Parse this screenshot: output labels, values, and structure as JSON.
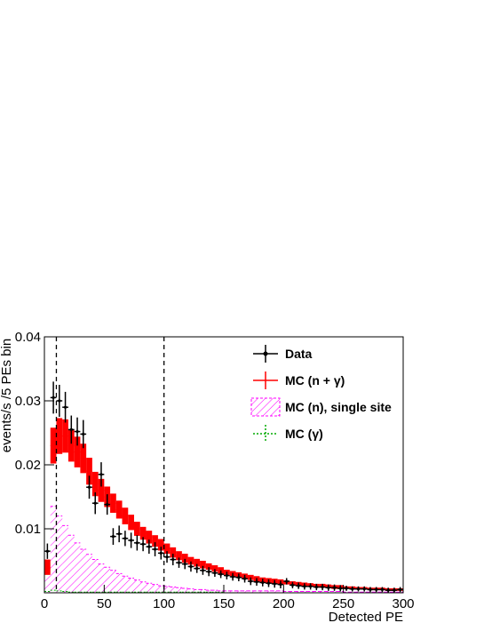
{
  "chart_data": {
    "type": "histogram",
    "x_label": "Detected PE",
    "y_label": "events/s /5 PEs bin",
    "bins": [
      0,
      5,
      10,
      15,
      20,
      25,
      30,
      35,
      40,
      45,
      50,
      55,
      60,
      65,
      70,
      75,
      80,
      85,
      90,
      95,
      100,
      105,
      110,
      115,
      120,
      125,
      130,
      135,
      140,
      145,
      150,
      155,
      160,
      165,
      170,
      175,
      180,
      185,
      190,
      195,
      200,
      205,
      210,
      215,
      220,
      225,
      230,
      235,
      240,
      245,
      250,
      255,
      260,
      265,
      270,
      275,
      280,
      285,
      290,
      295,
      300
    ],
    "xlim": [
      0,
      300
    ],
    "xticks": [
      0,
      50,
      100,
      150,
      200,
      250,
      300
    ],
    "ylim": [
      0,
      0.04
    ],
    "yticks": [
      0.01,
      0.02,
      0.03,
      0.04
    ],
    "vlines": [
      10,
      100
    ],
    "legend": "top-right",
    "series": [
      {
        "name": "Data",
        "color": "#000000",
        "style": "points",
        "values": [
          0.0065,
          0.0305,
          0.03,
          0.029,
          0.0255,
          0.0252,
          0.0248,
          0.0165,
          0.014,
          0.0185,
          0.0138,
          0.0088,
          0.0092,
          0.0085,
          0.0082,
          0.0078,
          0.0076,
          0.0072,
          0.0068,
          0.0062,
          0.0056,
          0.0052,
          0.0047,
          0.0045,
          0.0041,
          0.0038,
          0.0035,
          0.0033,
          0.0031,
          0.0029,
          0.0027,
          0.0025,
          0.0024,
          0.0022,
          0.0018,
          0.0017,
          0.0016,
          0.0015,
          0.0014,
          0.0013,
          0.0018,
          0.0012,
          0.0011,
          0.001,
          0.001,
          0.0009,
          0.0009,
          0.0008,
          0.0008,
          0.0007,
          0.0007,
          0.0006,
          0.0006,
          0.0006,
          0.0005,
          0.0005,
          0.0005,
          0.0004,
          0.0004,
          0.0005
        ],
        "errors": [
          0.0012,
          0.0025,
          0.0025,
          0.0024,
          0.0022,
          0.0022,
          0.0022,
          0.0018,
          0.0017,
          0.0019,
          0.0016,
          0.0013,
          0.0013,
          0.0012,
          0.0012,
          0.0012,
          0.0011,
          0.0011,
          0.0011,
          0.001,
          0.0009,
          0.0009,
          0.0008,
          0.0008,
          0.0008,
          0.0007,
          0.0007,
          0.0007,
          0.0006,
          0.0006,
          0.0006,
          0.0006,
          0.0006,
          0.0006,
          0.0006,
          0.0006,
          0.0006,
          0.0006,
          0.0006,
          0.0006,
          0.0005,
          0.0005,
          0.0005,
          0.0005,
          0.0005,
          0.0005,
          0.0005,
          0.0005,
          0.0005,
          0.0005,
          0.0004,
          0.0004,
          0.0004,
          0.0004,
          0.0004,
          0.0004,
          0.0004,
          0.0004,
          0.0004,
          0.0004
        ]
      },
      {
        "name": "MC (n + γ)",
        "color": "#ff0000",
        "style": "band",
        "values": [
          0.004,
          0.023,
          0.0245,
          0.0245,
          0.023,
          0.022,
          0.021,
          0.019,
          0.017,
          0.016,
          0.015,
          0.014,
          0.013,
          0.012,
          0.011,
          0.01,
          0.0093,
          0.0087,
          0.0081,
          0.0075,
          0.0069,
          0.0063,
          0.0058,
          0.0054,
          0.005,
          0.0047,
          0.0044,
          0.0041,
          0.0038,
          0.0035,
          0.0032,
          0.003,
          0.0028,
          0.0026,
          0.0024,
          0.0022,
          0.002,
          0.0019,
          0.0018,
          0.0017,
          0.0016,
          0.0015,
          0.0014,
          0.0013,
          0.0012,
          0.0011,
          0.0011,
          0.001,
          0.0009,
          0.0009,
          0.0008,
          0.0008,
          0.0007,
          0.0007,
          0.0006,
          0.0006,
          0.0006,
          0.0005,
          0.0005,
          0.0005
        ],
        "errors": [
          0.0012,
          0.0028,
          0.0028,
          0.0026,
          0.0025,
          0.0024,
          0.0023,
          0.0021,
          0.0019,
          0.0018,
          0.0016,
          0.0015,
          0.0014,
          0.0013,
          0.0012,
          0.0011,
          0.001,
          0.001,
          0.0009,
          0.0009,
          0.0008,
          0.0008,
          0.0007,
          0.0007,
          0.0006,
          0.0006,
          0.0006,
          0.0005,
          0.0005,
          0.0005,
          0.0004,
          0.0004,
          0.0004,
          0.0004,
          0.0004,
          0.0004,
          0.0004,
          0.0004,
          0.0004,
          0.0004,
          0.0003,
          0.0003,
          0.0003,
          0.0003,
          0.0003,
          0.0003,
          0.0003,
          0.0003,
          0.0003,
          0.0003,
          0.0002,
          0.0002,
          0.0002,
          0.0002,
          0.0002,
          0.0002,
          0.0002,
          0.0002,
          0.0002,
          0.0002
        ]
      },
      {
        "name": "MC (n), single site",
        "color": "#ff00ff",
        "style": "hatched",
        "values": [
          0.005,
          0.0135,
          0.012,
          0.0105,
          0.009,
          0.0078,
          0.0068,
          0.006,
          0.0052,
          0.0045,
          0.004,
          0.0035,
          0.003,
          0.0026,
          0.0023,
          0.002,
          0.0017,
          0.0015,
          0.0013,
          0.0011,
          0.001,
          0.0009,
          0.0008,
          0.0007,
          0.0006,
          0.0005,
          0.0005,
          0.0004,
          0.0004,
          0.0003,
          0.0003,
          0.0003,
          0.0003,
          0.0003,
          0.0003,
          0.0003,
          0.0003,
          0.0003,
          0.0003,
          0.0003,
          0.0002,
          0.0002,
          0.0002,
          0.0002,
          0.0002,
          0.0002,
          0.0002,
          0.0002,
          0.0002,
          0.0002,
          0.0001,
          0.0001,
          0.0001,
          0.0001,
          0.0001,
          0.0001,
          0.0001,
          0.0001,
          0.0001,
          0.0001
        ]
      },
      {
        "name": "MC (γ)",
        "color": "#00aa00",
        "style": "dashed",
        "values": [
          0.0002,
          0.0004,
          0.0003,
          0.0002,
          0.0001,
          0.0001,
          0.0001,
          0.0001,
          0.0001,
          0.0001,
          0.0001,
          0.0001,
          0.0001,
          0.0001,
          0.0001,
          0.0001,
          0.0001,
          0.0001,
          0.0001,
          0.0001,
          0.0001,
          0.0001,
          0.0001,
          0.0001,
          0.0001,
          0.0001,
          0.0001,
          0.0001,
          0.0001,
          0.0001,
          0,
          0,
          0,
          0,
          0,
          0,
          0,
          0,
          0,
          0,
          0,
          0,
          0,
          0,
          0,
          0,
          0,
          0,
          0,
          0,
          0,
          0,
          0,
          0,
          0,
          0,
          0,
          0,
          0,
          0
        ]
      }
    ]
  }
}
